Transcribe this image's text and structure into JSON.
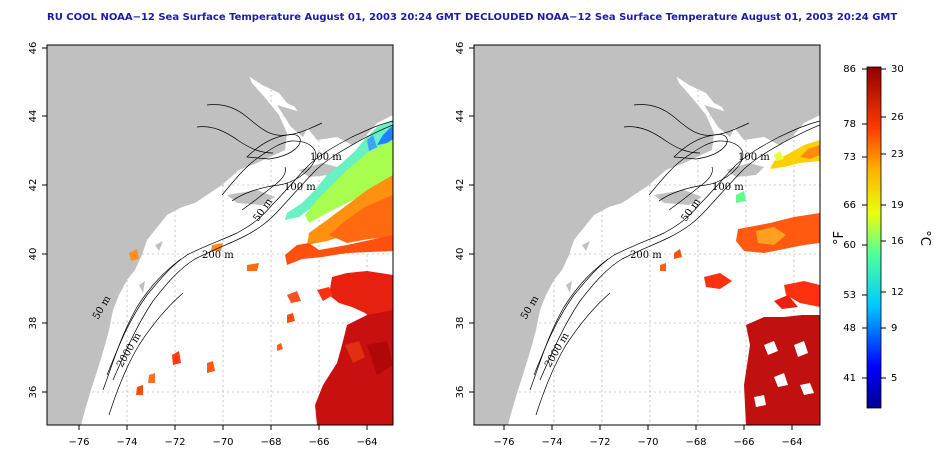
{
  "panels": [
    {
      "title": "RU COOL NOAA−12 Sea Surface Temperature August 01, 2003 20:24 GMT"
    },
    {
      "title": "DECLOUDED NOAA−12 Sea Surface Temperature August 01, 2003 20:24 GMT"
    }
  ],
  "lon_ticks": [
    "−76",
    "−74",
    "−72",
    "−70",
    "−68",
    "−66",
    "−64"
  ],
  "lat_ticks": [
    "46",
    "44",
    "42",
    "40",
    "38",
    "36"
  ],
  "contour_labels": {
    "c100a": "100 m",
    "c100b": "100 m",
    "c50": "50 m",
    "c200": "200 m",
    "c50b": "50 m",
    "c2000": "2000 m"
  },
  "colorbar": {
    "fahrenheit_ticks": [
      "86",
      "78",
      "73",
      "66",
      "60",
      "53",
      "48",
      "41"
    ],
    "celsius_ticks": [
      "30",
      "26",
      "23",
      "19",
      "16",
      "12",
      "9",
      "5"
    ],
    "fahrenheit_unit": "°F",
    "celsius_unit": "°C"
  },
  "colors": {
    "land": "#c0c0c0",
    "title": "#1c1ca8",
    "ocean": "#ffffff"
  }
}
